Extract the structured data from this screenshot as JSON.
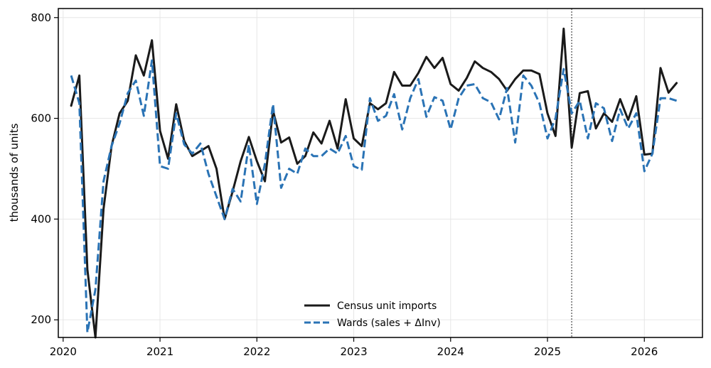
{
  "chart_data": {
    "type": "line",
    "title": "",
    "xlabel": "",
    "ylabel": "thousands of units",
    "xlim": [
      2019.95,
      2026.6
    ],
    "ylim": [
      165,
      818
    ],
    "x_ticks": [
      2020,
      2021,
      2022,
      2023,
      2024,
      2025,
      2026
    ],
    "y_ticks": [
      200,
      400,
      600,
      800
    ],
    "grid": true,
    "legend": "lower-center",
    "vline": {
      "x": 2025.25,
      "style": "dotted",
      "color": "#555555"
    },
    "series": [
      {
        "name": "Census unit imports",
        "color": "#1a1a1a",
        "style": "solid",
        "x": [
          2020.083,
          2020.167,
          2020.25,
          2020.333,
          2020.417,
          2020.5,
          2020.583,
          2020.667,
          2020.75,
          2020.833,
          2020.917,
          2021.0,
          2021.083,
          2021.167,
          2021.25,
          2021.333,
          2021.417,
          2021.5,
          2021.583,
          2021.667,
          2021.75,
          2021.833,
          2021.917,
          2022.0,
          2022.083,
          2022.167,
          2022.25,
          2022.333,
          2022.417,
          2022.5,
          2022.583,
          2022.667,
          2022.75,
          2022.833,
          2022.917,
          2023.0,
          2023.083,
          2023.167,
          2023.25,
          2023.333,
          2023.417,
          2023.5,
          2023.583,
          2023.667,
          2023.75,
          2023.833,
          2023.917,
          2024.0,
          2024.083,
          2024.167,
          2024.25,
          2024.333,
          2024.417,
          2024.5,
          2024.583,
          2024.667,
          2024.75,
          2024.833,
          2024.917,
          2025.0,
          2025.083,
          2025.167,
          2025.25,
          2025.333,
          2025.417,
          2025.5,
          2025.583,
          2025.667,
          2025.75,
          2025.833,
          2025.917,
          2026.0,
          2026.083,
          2026.167,
          2026.25,
          2026.333
        ],
        "values": [
          625,
          685,
          300,
          165,
          420,
          545,
          610,
          635,
          725,
          685,
          755,
          575,
          520,
          628,
          555,
          525,
          535,
          545,
          500,
          400,
          455,
          515,
          563,
          515,
          475,
          615,
          552,
          562,
          510,
          525,
          572,
          550,
          595,
          540,
          638,
          560,
          545,
          630,
          618,
          630,
          692,
          665,
          665,
          690,
          722,
          700,
          720,
          668,
          655,
          680,
          713,
          700,
          692,
          678,
          655,
          678,
          695,
          695,
          688,
          610,
          565,
          778,
          542,
          650,
          654,
          580,
          610,
          593,
          638,
          597,
          644,
          528,
          530,
          700,
          651,
          670
        ]
      },
      {
        "name": "Wards (sales + ΔInv)",
        "color": "#2a73b5",
        "style": "dashed",
        "x": [
          2020.083,
          2020.167,
          2020.25,
          2020.333,
          2020.417,
          2020.5,
          2020.583,
          2020.667,
          2020.75,
          2020.833,
          2020.917,
          2021.0,
          2021.083,
          2021.167,
          2021.25,
          2021.333,
          2021.417,
          2021.5,
          2021.583,
          2021.667,
          2021.75,
          2021.833,
          2021.917,
          2022.0,
          2022.083,
          2022.167,
          2022.25,
          2022.333,
          2022.417,
          2022.5,
          2022.583,
          2022.667,
          2022.75,
          2022.833,
          2022.917,
          2023.0,
          2023.083,
          2023.167,
          2023.25,
          2023.333,
          2023.417,
          2023.5,
          2023.583,
          2023.667,
          2023.75,
          2023.833,
          2023.917,
          2024.0,
          2024.083,
          2024.167,
          2024.25,
          2024.333,
          2024.417,
          2024.5,
          2024.583,
          2024.667,
          2024.75,
          2024.833,
          2024.917,
          2025.0,
          2025.083,
          2025.167,
          2025.25,
          2025.333,
          2025.417,
          2025.5,
          2025.583,
          2025.667,
          2025.75,
          2025.833,
          2025.917,
          2026.0,
          2026.083,
          2026.167,
          2026.25,
          2026.333
        ],
        "values": [
          685,
          630,
          175,
          260,
          475,
          545,
          590,
          650,
          675,
          605,
          715,
          505,
          500,
          610,
          548,
          530,
          550,
          490,
          445,
          400,
          460,
          435,
          548,
          430,
          510,
          628,
          462,
          500,
          490,
          540,
          525,
          525,
          540,
          530,
          565,
          505,
          498,
          640,
          595,
          605,
          648,
          578,
          640,
          678,
          603,
          642,
          635,
          578,
          640,
          665,
          668,
          640,
          632,
          598,
          660,
          552,
          685,
          665,
          630,
          560,
          600,
          698,
          610,
          635,
          560,
          630,
          620,
          555,
          618,
          580,
          610,
          495,
          530,
          640,
          640,
          635
        ]
      }
    ]
  }
}
